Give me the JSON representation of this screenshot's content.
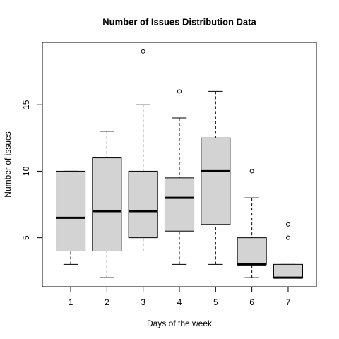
{
  "chart_data": {
    "type": "boxplot",
    "title": "Number of Issues Distribution Data",
    "x_label": "Days of the week",
    "y_label": "Number of issues",
    "categories": [
      "1",
      "2",
      "3",
      "4",
      "5",
      "6",
      "7"
    ],
    "color": "#d3d3d3",
    "boxes": [
      {
        "low": 3,
        "q1": 4,
        "median": 6.5,
        "q3": 10,
        "high": 10,
        "outliers": []
      },
      {
        "low": 2,
        "q1": 4,
        "median": 7,
        "q3": 11,
        "high": 13,
        "outliers": []
      },
      {
        "low": 4,
        "q1": 5,
        "median": 7,
        "q3": 10,
        "high": 15,
        "outliers": [
          19
        ]
      },
      {
        "low": 3,
        "q1": 5.5,
        "median": 8,
        "q3": 9.5,
        "high": 14,
        "outliers": [
          16
        ]
      },
      {
        "low": 3,
        "q1": 6,
        "median": 10,
        "q3": 12.5,
        "high": 16,
        "outliers": []
      },
      {
        "low": 2,
        "q1": 3,
        "median": 3,
        "q3": 5,
        "high": 8,
        "outliers": [
          10
        ]
      },
      {
        "low": 2,
        "q1": 2,
        "median": 2,
        "q3": 3,
        "high": 3,
        "outliers": [
          5,
          6
        ]
      }
    ],
    "ylim": [
      1.32,
      19.68
    ],
    "yticks": [
      5,
      10,
      15
    ]
  }
}
